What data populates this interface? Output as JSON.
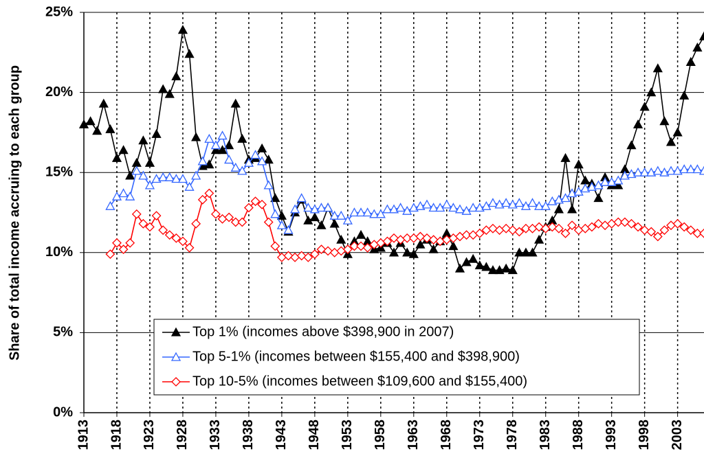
{
  "chart_data": {
    "type": "line",
    "y_label": "Share of total income accruing to each group",
    "x": [
      1913,
      1914,
      1915,
      1916,
      1917,
      1918,
      1919,
      1920,
      1921,
      1922,
      1923,
      1924,
      1925,
      1926,
      1927,
      1928,
      1929,
      1930,
      1931,
      1932,
      1933,
      1934,
      1935,
      1936,
      1937,
      1938,
      1939,
      1940,
      1941,
      1942,
      1943,
      1944,
      1945,
      1946,
      1947,
      1948,
      1949,
      1950,
      1951,
      1952,
      1953,
      1954,
      1955,
      1956,
      1957,
      1958,
      1959,
      1960,
      1961,
      1962,
      1963,
      1964,
      1965,
      1966,
      1967,
      1968,
      1969,
      1970,
      1971,
      1972,
      1973,
      1974,
      1975,
      1976,
      1977,
      1978,
      1979,
      1980,
      1981,
      1982,
      1983,
      1984,
      1985,
      1986,
      1987,
      1988,
      1989,
      1990,
      1991,
      1992,
      1993,
      1994,
      1995,
      1996,
      1997,
      1998,
      1999,
      2000,
      2001,
      2002,
      2003,
      2004,
      2005,
      2006,
      2007
    ],
    "xlim": [
      1913,
      2007
    ],
    "xticks": [
      1913,
      1918,
      1923,
      1928,
      1933,
      1938,
      1943,
      1948,
      1953,
      1958,
      1963,
      1968,
      1973,
      1978,
      1983,
      1988,
      1993,
      1998,
      2003
    ],
    "ylim": [
      0,
      25
    ],
    "yticks": [
      {
        "value": 0,
        "label": "0%"
      },
      {
        "value": 5,
        "label": "5%"
      },
      {
        "value": 10,
        "label": "10%"
      },
      {
        "value": 15,
        "label": "15%"
      },
      {
        "value": 20,
        "label": "20%"
      },
      {
        "value": 25,
        "label": "25%"
      }
    ],
    "grid": true,
    "series": [
      {
        "name": "Top 1% (incomes above $398,900 in 2007)",
        "color": "#000000",
        "marker": "triangle",
        "filled": true,
        "values": [
          18.0,
          18.2,
          17.6,
          19.3,
          17.7,
          15.9,
          16.4,
          14.8,
          15.6,
          17.0,
          15.6,
          17.4,
          20.2,
          19.9,
          21.0,
          23.9,
          22.4,
          17.2,
          15.4,
          15.5,
          16.4,
          16.4,
          16.7,
          19.3,
          17.1,
          15.8,
          15.9,
          16.5,
          15.8,
          13.4,
          12.3,
          11.3,
          12.5,
          13.3,
          12.0,
          12.2,
          11.7,
          12.8,
          11.8,
          10.8,
          9.9,
          10.7,
          11.1,
          10.7,
          10.2,
          10.3,
          10.6,
          10.0,
          10.6,
          10.0,
          9.9,
          10.5,
          10.8,
          10.2,
          10.7,
          11.2,
          10.4,
          9.0,
          9.4,
          9.6,
          9.2,
          9.1,
          8.9,
          8.9,
          9.0,
          8.9,
          10.0,
          10.0,
          10.0,
          10.8,
          11.6,
          12.0,
          12.7,
          15.9,
          12.7,
          15.5,
          14.5,
          14.3,
          13.4,
          14.7,
          14.2,
          14.2,
          15.2,
          16.7,
          18.0,
          19.1,
          20.0,
          21.5,
          18.2,
          16.9,
          17.5,
          19.8,
          21.9,
          22.8,
          23.5
        ]
      },
      {
        "name": "Top 5-1% (incomes between $155,400 and $398,900)",
        "color": "#3366ff",
        "marker": "triangle",
        "filled": false,
        "values": [
          null,
          null,
          null,
          null,
          12.9,
          13.5,
          13.7,
          13.5,
          15.1,
          14.8,
          14.2,
          14.6,
          14.7,
          14.7,
          14.6,
          14.6,
          14.1,
          14.8,
          15.7,
          17.1,
          16.7,
          17.3,
          15.8,
          15.3,
          15.1,
          15.6,
          16.1,
          15.7,
          14.2,
          12.4,
          11.7,
          11.4,
          12.7,
          13.4,
          12.8,
          12.7,
          12.8,
          12.8,
          12.3,
          12.3,
          12.0,
          12.5,
          12.5,
          12.5,
          12.4,
          12.4,
          12.7,
          12.7,
          12.8,
          12.6,
          12.8,
          12.9,
          13.0,
          12.8,
          12.8,
          13.0,
          12.8,
          12.7,
          12.6,
          12.8,
          12.8,
          12.9,
          13.1,
          13.0,
          13.1,
          13.0,
          13.1,
          12.9,
          13.1,
          12.9,
          12.9,
          13.2,
          13.3,
          13.4,
          13.7,
          13.8,
          14.0,
          14.1,
          14.2,
          14.4,
          14.4,
          14.5,
          14.8,
          14.9,
          15.0,
          15.0,
          15.0,
          15.1,
          15.0,
          15.1,
          15.1,
          15.2,
          15.2,
          15.2,
          15.1
        ]
      },
      {
        "name": "Top 10-5% (incomes between $109,600 and $155,400)",
        "color": "#ff0000",
        "marker": "diamond",
        "filled": false,
        "values": [
          null,
          null,
          null,
          null,
          9.9,
          10.6,
          10.2,
          10.6,
          12.4,
          11.8,
          11.6,
          12.3,
          11.4,
          11.1,
          10.9,
          10.7,
          10.3,
          11.8,
          13.3,
          13.7,
          12.4,
          12.1,
          12.2,
          11.9,
          11.9,
          12.8,
          13.2,
          13.0,
          11.9,
          10.4,
          9.7,
          9.8,
          9.7,
          9.8,
          9.7,
          9.9,
          10.2,
          10.1,
          10.0,
          10.1,
          10.2,
          10.4,
          10.4,
          10.3,
          10.5,
          10.6,
          10.7,
          10.9,
          10.8,
          10.9,
          10.9,
          11.0,
          10.9,
          10.8,
          10.7,
          10.8,
          10.9,
          11.0,
          11.1,
          11.1,
          11.2,
          11.4,
          11.5,
          11.4,
          11.5,
          11.4,
          11.3,
          11.5,
          11.5,
          11.6,
          11.5,
          11.6,
          11.5,
          11.2,
          11.7,
          11.4,
          11.5,
          11.6,
          11.8,
          11.7,
          11.8,
          11.9,
          11.9,
          11.8,
          11.6,
          11.4,
          11.3,
          11.0,
          11.4,
          11.7,
          11.8,
          11.6,
          11.4,
          11.2,
          11.2
        ]
      }
    ]
  }
}
